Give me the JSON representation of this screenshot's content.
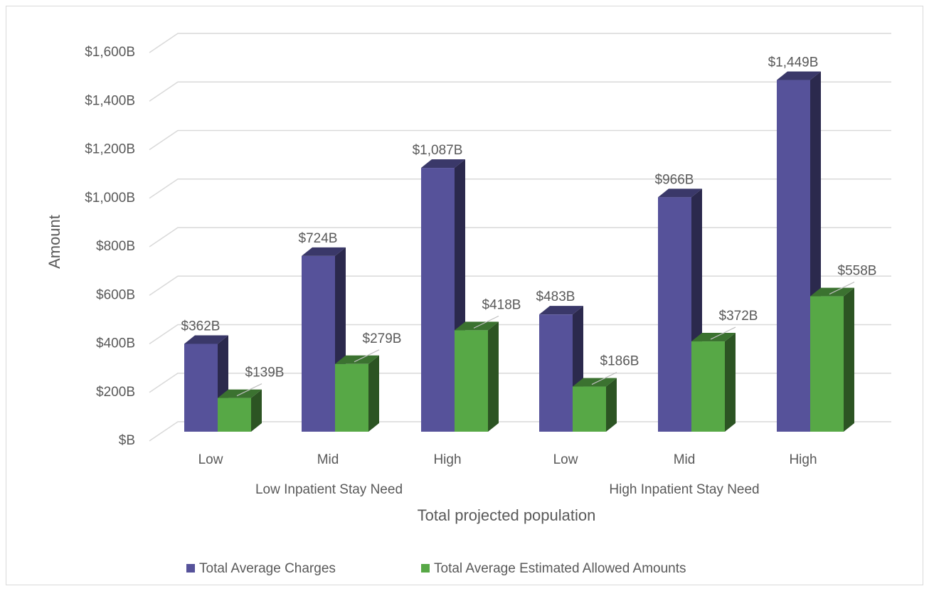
{
  "chart_data": {
    "type": "bar3d",
    "categories": [
      "Low",
      "Mid",
      "High",
      "Low",
      "Mid",
      "High"
    ],
    "groups": [
      {
        "label": "Low Inpatient Stay Need",
        "span": [
          0,
          2
        ]
      },
      {
        "label": "High Inpatient Stay Need",
        "span": [
          3,
          5
        ]
      }
    ],
    "xlabel": "Total projected population",
    "ylabel": "Amount",
    "ylim": [
      0,
      1600
    ],
    "yticks": [
      {
        "value": 0,
        "label": "$B"
      },
      {
        "value": 200,
        "label": "$200B"
      },
      {
        "value": 400,
        "label": "$400B"
      },
      {
        "value": 600,
        "label": "$600B"
      },
      {
        "value": 800,
        "label": "$800B"
      },
      {
        "value": 1000,
        "label": "$1,000B"
      },
      {
        "value": 1200,
        "label": "$1,200B"
      },
      {
        "value": 1400,
        "label": "$1,400B"
      },
      {
        "value": 1600,
        "label": "$1,600B"
      }
    ],
    "grid": true,
    "legend": "bottom",
    "series": [
      {
        "name": "Total Average Charges",
        "color": "#56529a",
        "values": [
          362,
          724,
          1087,
          483,
          966,
          1449
        ],
        "value_labels": [
          "$362B",
          "$724B",
          "$1,087B",
          "$483B",
          "$966B",
          "$1,449B"
        ]
      },
      {
        "name": "Total Average Estimated Allowed Amounts",
        "color": "#57a846",
        "values": [
          139,
          279,
          418,
          186,
          372,
          558
        ],
        "value_labels": [
          "$139B",
          "$279B",
          "$418B",
          "$186B",
          "$372B",
          "$558B"
        ]
      }
    ]
  }
}
